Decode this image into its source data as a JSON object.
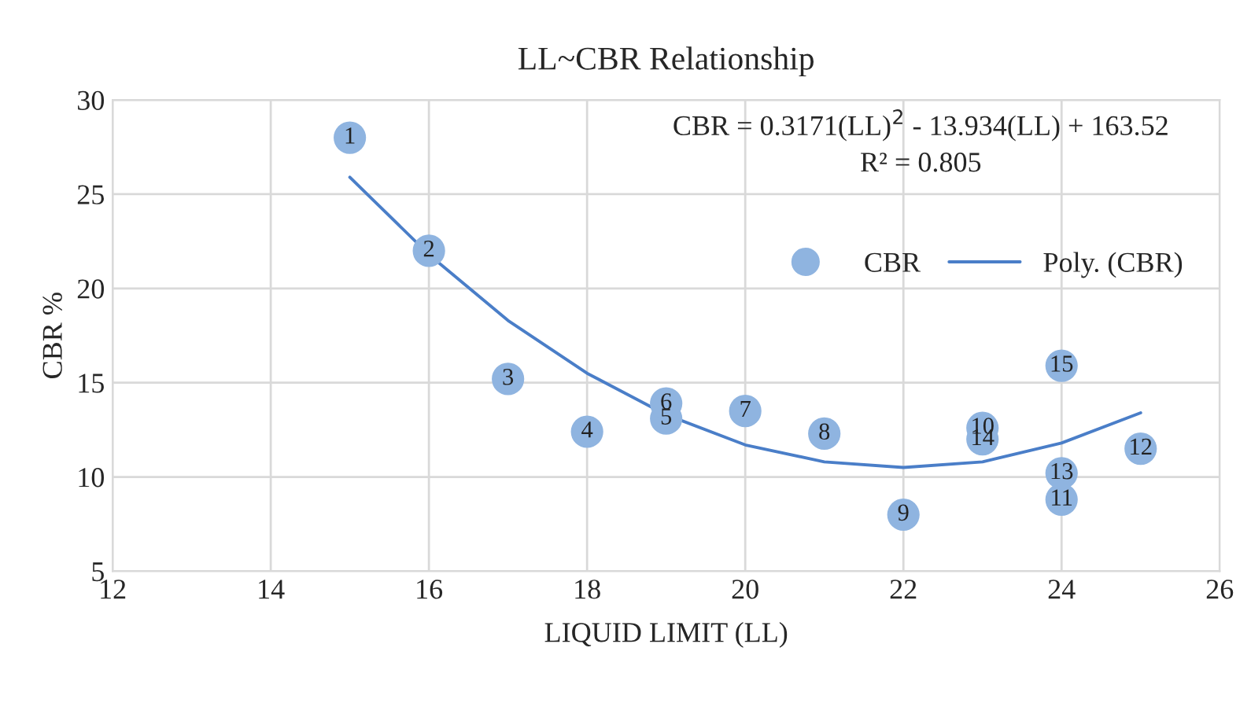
{
  "chart_data": {
    "type": "scatter",
    "title": "LL~CBR Relationship",
    "xlabel": "LIQUID LIMIT (LL)",
    "ylabel": "CBR %",
    "annotations": [
      "CBR = 0.3171(LL)$^{2}$ - 13.934(LL) + 163.52",
      "R² = 0.805",
      {
        "text": "1",
        "x": 15,
        "y": 28.0
      },
      {
        "text": "2",
        "x": 16,
        "y": 22.0
      },
      {
        "text": "3",
        "x": 17,
        "y": 15.2
      },
      {
        "text": "4",
        "x": 18,
        "y": 12.4
      },
      {
        "text": "5",
        "x": 19,
        "y": 13.1
      },
      {
        "text": "6",
        "x": 19,
        "y": 13.9
      },
      {
        "text": "7",
        "x": 20,
        "y": 13.5
      },
      {
        "text": "8",
        "x": 21,
        "y": 12.3
      },
      {
        "text": "9",
        "x": 22,
        "y": 8.0
      },
      {
        "text": "10",
        "x": 23,
        "y": 12.6
      },
      {
        "text": "11",
        "x": 24,
        "y": 8.8
      },
      {
        "text": "12",
        "x": 25,
        "y": 11.5
      },
      {
        "text": "13",
        "x": 24,
        "y": 10.2
      },
      {
        "text": "14",
        "x": 23,
        "y": 12.0
      },
      {
        "text": "15",
        "x": 24,
        "y": 15.9
      }
    ],
    "series": [
      {
        "name": "CBR",
        "color": "#8fb4e0",
        "marker": "circle",
        "x": [
          15,
          16,
          17,
          18,
          19,
          19,
          20,
          21,
          22,
          23,
          24,
          25,
          24,
          23,
          24
        ],
        "values": [
          28.0,
          22.0,
          15.2,
          12.4,
          13.1,
          13.9,
          13.5,
          12.3,
          8.0,
          12.6,
          8.8,
          11.5,
          10.2,
          12.0,
          15.9
        ]
      },
      {
        "name": "Poly. (CBR)",
        "type": "line",
        "color": "#4a7ec8",
        "x": [
          15,
          16,
          17,
          18,
          19,
          20,
          21,
          22,
          23,
          24,
          25
        ],
        "values": [
          25.9,
          21.8,
          18.3,
          15.5,
          13.3,
          11.7,
          10.8,
          10.5,
          10.8,
          11.8,
          13.4
        ]
      }
    ],
    "xlim": [
      12,
      26
    ],
    "xticks": [
      12,
      14,
      16,
      18,
      20,
      22,
      24,
      26
    ],
    "ylim": [
      5,
      30
    ],
    "yticks": [
      5,
      10,
      15,
      20,
      25,
      30
    ],
    "grid": true,
    "legend": "right"
  }
}
